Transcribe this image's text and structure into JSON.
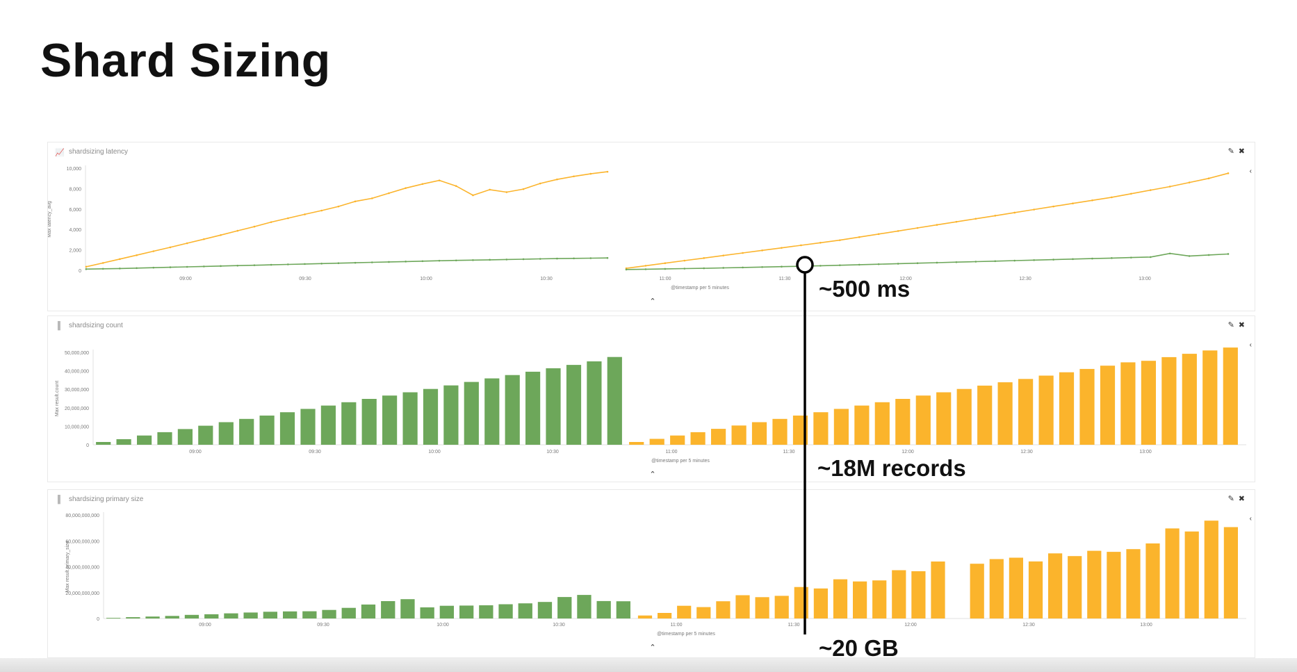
{
  "slide": {
    "title": "Shard Sizing"
  },
  "panels": [
    {
      "title": "shardsizing latency",
      "icon": "line-chart-icon"
    },
    {
      "title": "shardsizing count",
      "icon": "bar-chart-icon"
    },
    {
      "title": "shardsizing primary size",
      "icon": "bar-chart-icon"
    }
  ],
  "annotations": {
    "latency": "~500 ms",
    "count": "~18M records",
    "size": "~20 GB",
    "marker_time": "11:35"
  },
  "colors": {
    "green": "#6da75a",
    "yellow": "#fbb42c",
    "annotation": "#000000"
  },
  "chart_data": [
    {
      "type": "line",
      "title": "shardsizing latency",
      "xlabel": "@timestamp per 5 minutes",
      "ylabel": "Max latency_avg",
      "yticks": [
        "0",
        "2,000",
        "4,000",
        "6,000",
        "8,000",
        "10,000"
      ],
      "ylim": [
        0,
        10000
      ],
      "xticks_left": [
        "09:00",
        "09:30",
        "10:00",
        "10:30"
      ],
      "xticks_right": [
        "11:00",
        "11:30",
        "12:00",
        "12:30",
        "13:00"
      ],
      "segments": [
        {
          "series": [
            {
              "color": "yellow",
              "points": [
                [
                  0,
                  350
                ],
                [
                  1,
                  720
                ],
                [
                  2,
                  1100
                ],
                [
                  3,
                  1480
                ],
                [
                  4,
                  1870
                ],
                [
                  5,
                  2250
                ],
                [
                  6,
                  2650
                ],
                [
                  7,
                  3050
                ],
                [
                  8,
                  3450
                ],
                [
                  9,
                  3870
                ],
                [
                  10,
                  4280
                ],
                [
                  11,
                  4720
                ],
                [
                  12,
                  5100
                ],
                [
                  13,
                  5480
                ],
                [
                  14,
                  5850
                ],
                [
                  15,
                  6250
                ],
                [
                  16,
                  6750
                ],
                [
                  17,
                  7050
                ],
                [
                  18,
                  7550
                ],
                [
                  19,
                  8050
                ],
                [
                  20,
                  8450
                ],
                [
                  21,
                  8800
                ],
                [
                  22,
                  8250
                ],
                [
                  23,
                  7350
                ],
                [
                  24,
                  7900
                ],
                [
                  25,
                  7650
                ],
                [
                  26,
                  7950
                ],
                [
                  27,
                  8500
                ],
                [
                  28,
                  8900
                ],
                [
                  29,
                  9200
                ],
                [
                  30,
                  9450
                ],
                [
                  31,
                  9650
                ]
              ]
            },
            {
              "color": "green",
              "points": [
                [
                  0,
                  120
                ],
                [
                  1,
                  150
                ],
                [
                  2,
                  180
                ],
                [
                  3,
                  220
                ],
                [
                  4,
                  260
                ],
                [
                  5,
                  300
                ],
                [
                  6,
                  340
                ],
                [
                  7,
                  380
                ],
                [
                  8,
                  420
                ],
                [
                  9,
                  460
                ],
                [
                  10,
                  500
                ],
                [
                  11,
                  540
                ],
                [
                  12,
                  580
                ],
                [
                  13,
                  620
                ],
                [
                  14,
                  660
                ],
                [
                  15,
                  700
                ],
                [
                  16,
                  740
                ],
                [
                  17,
                  780
                ],
                [
                  18,
                  820
                ],
                [
                  19,
                  860
                ],
                [
                  20,
                  900
                ],
                [
                  21,
                  940
                ],
                [
                  22,
                  970
                ],
                [
                  23,
                  1000
                ],
                [
                  24,
                  1030
                ],
                [
                  25,
                  1060
                ],
                [
                  26,
                  1090
                ],
                [
                  27,
                  1120
                ],
                [
                  28,
                  1150
                ],
                [
                  29,
                  1170
                ],
                [
                  30,
                  1190
                ],
                [
                  31,
                  1210
                ]
              ]
            }
          ]
        },
        {
          "series": [
            {
              "color": "yellow",
              "points": [
                [
                  0,
                  200
                ],
                [
                  1,
                  450
                ],
                [
                  2,
                  700
                ],
                [
                  3,
                  950
                ],
                [
                  4,
                  1200
                ],
                [
                  5,
                  1450
                ],
                [
                  6,
                  1700
                ],
                [
                  7,
                  1950
                ],
                [
                  8,
                  2200
                ],
                [
                  9,
                  2450
                ],
                [
                  10,
                  2700
                ],
                [
                  11,
                  2950
                ],
                [
                  12,
                  3250
                ],
                [
                  13,
                  3550
                ],
                [
                  14,
                  3850
                ],
                [
                  15,
                  4150
                ],
                [
                  16,
                  4450
                ],
                [
                  17,
                  4750
                ],
                [
                  18,
                  5050
                ],
                [
                  19,
                  5350
                ],
                [
                  20,
                  5650
                ],
                [
                  21,
                  5950
                ],
                [
                  22,
                  6250
                ],
                [
                  23,
                  6550
                ],
                [
                  24,
                  6850
                ],
                [
                  25,
                  7150
                ],
                [
                  26,
                  7500
                ],
                [
                  27,
                  7850
                ],
                [
                  28,
                  8200
                ],
                [
                  29,
                  8600
                ],
                [
                  30,
                  9000
                ],
                [
                  31,
                  9500
                ]
              ]
            },
            {
              "color": "green",
              "points": [
                [
                  0,
                  80
                ],
                [
                  1,
                  110
                ],
                [
                  2,
                  140
                ],
                [
                  3,
                  170
                ],
                [
                  4,
                  200
                ],
                [
                  5,
                  240
                ],
                [
                  6,
                  280
                ],
                [
                  7,
                  320
                ],
                [
                  8,
                  360
                ],
                [
                  9,
                  400
                ],
                [
                  10,
                  450
                ],
                [
                  11,
                  500
                ],
                [
                  12,
                  550
                ],
                [
                  13,
                  600
                ],
                [
                  14,
                  650
                ],
                [
                  15,
                  700
                ],
                [
                  16,
                  750
                ],
                [
                  17,
                  800
                ],
                [
                  18,
                  850
                ],
                [
                  19,
                  900
                ],
                [
                  20,
                  950
                ],
                [
                  21,
                  1000
                ],
                [
                  22,
                  1050
                ],
                [
                  23,
                  1100
                ],
                [
                  24,
                  1150
                ],
                [
                  25,
                  1200
                ],
                [
                  26,
                  1250
                ],
                [
                  27,
                  1300
                ],
                [
                  28,
                  1650
                ],
                [
                  29,
                  1400
                ],
                [
                  30,
                  1500
                ],
                [
                  31,
                  1600
                ]
              ]
            }
          ]
        }
      ]
    },
    {
      "type": "bar",
      "title": "shardsizing count",
      "xlabel": "@timestamp per 5 minutes",
      "ylabel": "Max result.count",
      "yticks": [
        "0",
        "10,000,000",
        "20,000,000",
        "30,000,000",
        "40,000,000",
        "50,000,000"
      ],
      "ylim": [
        0,
        50000000
      ],
      "xticks": [
        "09:00",
        "09:30",
        "10:00",
        "10:30",
        "11:00",
        "11:30",
        "12:00",
        "12:30",
        "13:00"
      ],
      "series": [
        {
          "name": "",
          "color": "green",
          "values": [
            1500000,
            3000000,
            5000000,
            6800000,
            8500000,
            10300000,
            12200000,
            14000000,
            15800000,
            17600000,
            19400000,
            21200000,
            23000000,
            24800000,
            26600000,
            28400000,
            30200000,
            32100000,
            34000000,
            35900000,
            37700000,
            39500000,
            41400000,
            43200000,
            45100000,
            47500000
          ]
        },
        {
          "name": "",
          "color": "yellow",
          "values": [
            1500000,
            3200000,
            5000000,
            6800000,
            8600000,
            10400000,
            12200000,
            14000000,
            15800000,
            17600000,
            19400000,
            21200000,
            23000000,
            24800000,
            26600000,
            28400000,
            30200000,
            32000000,
            33800000,
            35600000,
            37400000,
            39200000,
            41000000,
            42800000,
            44600000,
            45400000,
            47400000,
            49200000,
            51000000,
            52600000
          ]
        }
      ]
    },
    {
      "type": "bar",
      "title": "shardsizing primary size",
      "xlabel": "@timestamp per 5 minutes",
      "ylabel": "Max result.primary_size",
      "yticks": [
        "0",
        "20,000,000,000",
        "40,000,000,000",
        "60,000,000,000",
        "80,000,000,000"
      ],
      "ylim": [
        0,
        80000000000
      ],
      "xticks": [
        "09:00",
        "09:30",
        "10:00",
        "10:30",
        "11:00",
        "11:30",
        "12:00",
        "12:30",
        "13:00"
      ],
      "series": [
        {
          "name": "",
          "color": "green",
          "values": [
            500000000,
            1000000000,
            1500000000,
            2000000000,
            2800000000,
            3300000000,
            4000000000,
            4600000000,
            5200000000,
            5500000000,
            5600000000,
            6600000000,
            8200000000,
            10800000000,
            13400000000,
            14900000000,
            8600000000,
            9800000000,
            10000000000,
            10200000000,
            11000000000,
            11700000000,
            12800000000,
            16600000000,
            18200000000,
            13500000000,
            13300000000
          ]
        },
        {
          "name": "",
          "color": "yellow",
          "values": [
            2300000000,
            4300000000,
            9800000000,
            8800000000,
            13300000000,
            18000000000,
            16500000000,
            17500000000,
            24300000000,
            23200000000,
            30300000000,
            28600000000,
            29400000000,
            37300000000,
            36500000000,
            44000000000,
            0,
            42300000000,
            45900000000,
            47000000000,
            44100000000,
            50300000000,
            48200000000,
            52300000000,
            51500000000,
            53600000000,
            58000000000,
            69600000000,
            67200000000,
            75600000000,
            70600000000
          ]
        }
      ]
    }
  ]
}
